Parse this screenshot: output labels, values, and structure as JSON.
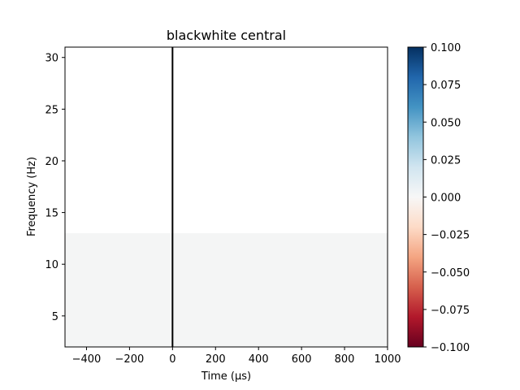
{
  "chart_data": {
    "type": "heatmap",
    "title": "blackwhite central",
    "xlabel": "Time (μs)",
    "ylabel": "Frequency (Hz)",
    "xlim": [
      -500,
      1000
    ],
    "ylim": [
      2,
      31
    ],
    "x_ticks": [
      -400,
      -200,
      0,
      200,
      400,
      600,
      800,
      1000
    ],
    "x_tick_labels": [
      "−400",
      "−200",
      "0",
      "200",
      "400",
      "600",
      "800",
      "1000"
    ],
    "y_ticks": [
      5,
      10,
      15,
      20,
      25,
      30
    ],
    "y_tick_labels": [
      "5",
      "10",
      "15",
      "20",
      "25",
      "30"
    ],
    "regions": [
      {
        "x_range": [
          -500,
          1000
        ],
        "y_range": [
          2,
          13
        ],
        "value": 0.0,
        "color": "#f4f5f5"
      },
      {
        "x_range": [
          -500,
          1000
        ],
        "y_range": [
          13,
          31
        ],
        "value": 0.0,
        "color": "#ffffff"
      }
    ],
    "event_line": {
      "x": 0,
      "color": "#000000"
    },
    "colorbar": {
      "colormap": "RdBu",
      "range": [
        -0.1,
        0.1
      ],
      "ticks": [
        0.1,
        0.075,
        0.05,
        0.025,
        0.0,
        -0.025,
        -0.05,
        -0.075,
        -0.1
      ],
      "tick_labels": [
        "0.100",
        "0.075",
        "0.050",
        "0.025",
        "0.000",
        "−0.025",
        "−0.050",
        "−0.075",
        "−0.100"
      ],
      "stops": [
        "#67001f",
        "#b2182b",
        "#d6604d",
        "#f4a582",
        "#fddbc7",
        "#f7f7f7",
        "#d1e5f0",
        "#92c5de",
        "#4393c3",
        "#2166ac",
        "#053061"
      ]
    },
    "grid": false,
    "legend": "none"
  }
}
